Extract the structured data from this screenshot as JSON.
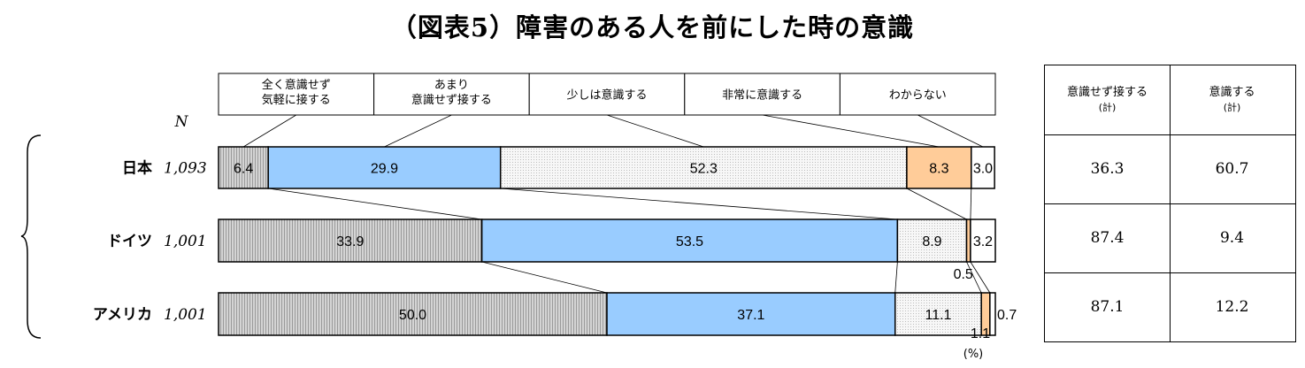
{
  "title": "（図表5）障害のある人を前にした時の意識",
  "n_label": "N",
  "unit_label": "(%)",
  "legend": [
    {
      "lines": [
        "全く意識せず",
        "気軽に接する"
      ]
    },
    {
      "lines": [
        "あまり",
        "意識せず接する"
      ]
    },
    {
      "lines": [
        "少しは意識する"
      ]
    },
    {
      "lines": [
        "非常に意識する"
      ]
    },
    {
      "lines": [
        "わからない"
      ]
    }
  ],
  "colors": {
    "not_at_all": "#d0d0d0",
    "not_much": "#99ccff",
    "a_little": "#f4f4f4",
    "very": "#ffcc99",
    "unknown": "#ffffff"
  },
  "chart_data": {
    "type": "bar",
    "orientation": "horizontal-stacked-100",
    "categories": [
      "日本",
      "ドイツ",
      "アメリカ"
    ],
    "n": [
      "1,093",
      "1,001",
      "1,001"
    ],
    "series": [
      {
        "name": "全く意識せず気軽に接する",
        "values": [
          6.4,
          33.9,
          50.0
        ],
        "labels": [
          "6.4",
          "33.9",
          "50.0"
        ]
      },
      {
        "name": "あまり意識せず接する",
        "values": [
          29.9,
          53.5,
          37.1
        ],
        "labels": [
          "29.9",
          "53.5",
          "37.1"
        ]
      },
      {
        "name": "少しは意識する",
        "values": [
          52.3,
          8.9,
          11.1
        ],
        "labels": [
          "52.3",
          "8.9",
          "11.1"
        ]
      },
      {
        "name": "非常に意識する",
        "values": [
          8.3,
          0.5,
          1.1
        ],
        "labels": [
          "8.3",
          "0.5",
          "1.1"
        ]
      },
      {
        "name": "わからない",
        "values": [
          3.0,
          3.2,
          0.7
        ],
        "labels": [
          "3.0",
          "3.2",
          "0.7"
        ]
      }
    ]
  },
  "summary_table": {
    "headers": [
      {
        "main": "意識せず接する",
        "sub": "(計)"
      },
      {
        "main": "意識する",
        "sub": "(計)"
      }
    ],
    "rows": [
      [
        "36.3",
        "60.7"
      ],
      [
        "87.4",
        "9.4"
      ],
      [
        "87.1",
        "12.2"
      ]
    ]
  }
}
